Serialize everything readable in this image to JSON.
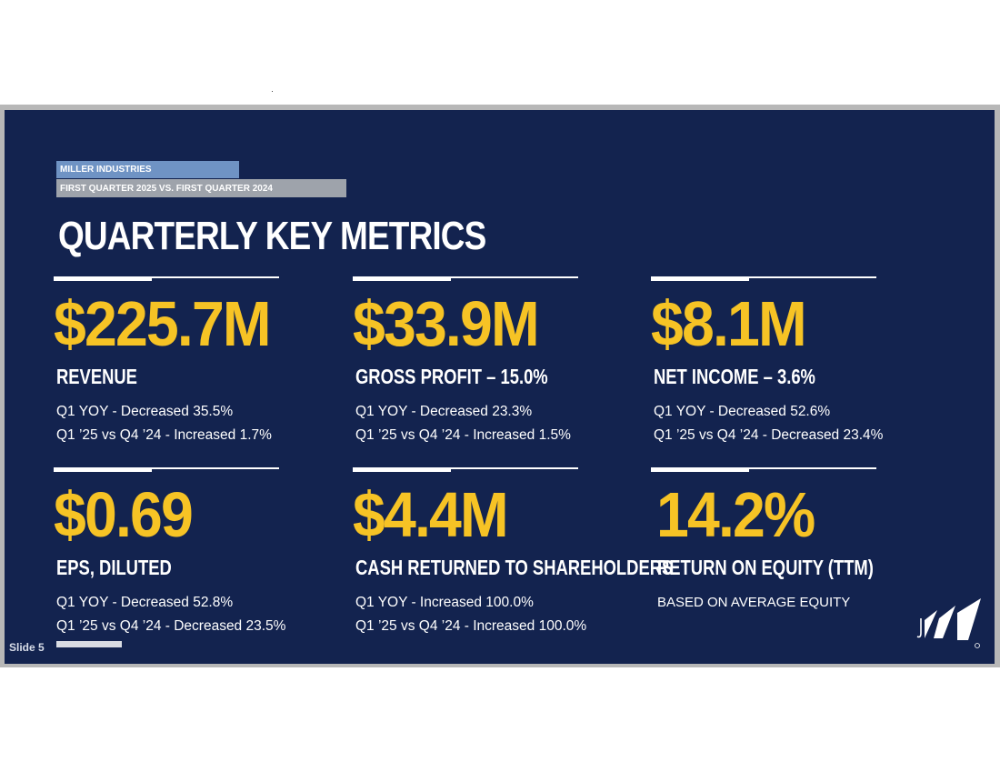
{
  "slide": {
    "company": "MILLER INDUSTRIES",
    "comparison": "FIRST QUARTER 2025 VS. FIRST QUARTER 2024",
    "title": "QUARTERLY KEY METRICS",
    "slide_number": "Slide 5"
  },
  "metrics": [
    {
      "value": "$225.7M",
      "label": "REVENUE",
      "line1": "Q1 YOY - Decreased 35.5%",
      "line2": "Q1 ’25 vs Q4 ’24 - Increased 1.7%"
    },
    {
      "value": "$33.9M",
      "label": "GROSS PROFIT – 15.0%",
      "line1": "Q1 YOY - Decreased 23.3%",
      "line2": "Q1 ’25 vs Q4 ’24 - Increased 1.5%"
    },
    {
      "value": "$8.1M",
      "label": "NET INCOME – 3.6%",
      "line1": "Q1 YOY - Decreased 52.6%",
      "line2": "Q1 ’25 vs Q4 ’24 - Decreased 23.4%"
    },
    {
      "value": "$0.69",
      "label": "EPS, DILUTED",
      "line1": "Q1 YOY - Decreased 52.8%",
      "line2": "Q1 ’25 vs Q4 ’24 - Decreased 23.5%"
    },
    {
      "value": "$4.4M",
      "label": "CASH RETURNED TO SHAREHOLDERS",
      "line1": "Q1 YOY - Increased 100.0%",
      "line2": "Q1 ’25 vs Q4 ’24 - Increased 100.0%"
    },
    {
      "value": "14.2%",
      "label": "RETURN ON EQUITY (TTM)",
      "line1": "BASED ON AVERAGE EQUITY"
    }
  ],
  "colors": {
    "background": "#13234f",
    "accent": "#f6c325",
    "company_band": "#6f93c4",
    "comparison_band": "#9ea3ab"
  },
  "logo": {
    "icon": "miller-logo-icon"
  }
}
